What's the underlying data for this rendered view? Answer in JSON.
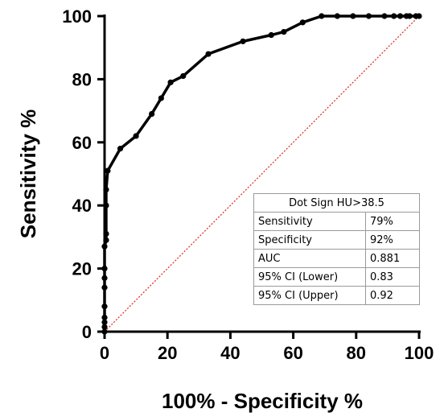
{
  "chart_data": {
    "type": "line",
    "title": "",
    "xlabel": "100% - Specificity %",
    "ylabel": "Sensitivity %",
    "xlim": [
      0,
      100
    ],
    "ylim": [
      0,
      100
    ],
    "xticks": [
      "0",
      "20",
      "40",
      "60",
      "80",
      "100"
    ],
    "yticks": [
      "0",
      "20",
      "40",
      "60",
      "80",
      "100"
    ],
    "grid": false,
    "series": [
      {
        "name": "",
        "color": "#000000",
        "points": [
          [
            0,
            0
          ],
          [
            0,
            1.5
          ],
          [
            0,
            3
          ],
          [
            0,
            4.5
          ],
          [
            0,
            8
          ],
          [
            0,
            14
          ],
          [
            0,
            17
          ],
          [
            0,
            20
          ],
          [
            0,
            27
          ],
          [
            0.5,
            29
          ],
          [
            0.5,
            31
          ],
          [
            0.5,
            40
          ],
          [
            0.5,
            45
          ],
          [
            1,
            51
          ],
          [
            5,
            58
          ],
          [
            10,
            62
          ],
          [
            15,
            69
          ],
          [
            18,
            74
          ],
          [
            21,
            79
          ],
          [
            25,
            81
          ],
          [
            33,
            88
          ],
          [
            44,
            92
          ],
          [
            53,
            94
          ],
          [
            57,
            95
          ],
          [
            63,
            98
          ],
          [
            69,
            100
          ],
          [
            74,
            100
          ],
          [
            79,
            100
          ],
          [
            84,
            100
          ],
          [
            89,
            100
          ],
          [
            92,
            100
          ],
          [
            94,
            100
          ],
          [
            96,
            100
          ],
          [
            97,
            100
          ],
          [
            99,
            100
          ],
          [
            100,
            100
          ]
        ]
      }
    ],
    "reference_line": {
      "points": [
        [
          0,
          0
        ],
        [
          100,
          100
        ]
      ],
      "color": "#dd2222",
      "style": "dotted"
    }
  },
  "stats_table": {
    "header": "Dot Sign HU>38.5",
    "rows": [
      {
        "label": "Sensitivity",
        "value": "79%"
      },
      {
        "label": "Specificity",
        "value": "92%"
      },
      {
        "label": "AUC",
        "value": "0.881"
      },
      {
        "label": "95% CI (Lower)",
        "value": "0.83"
      },
      {
        "label": "95% CI (Upper)",
        "value": "0.92"
      }
    ]
  }
}
